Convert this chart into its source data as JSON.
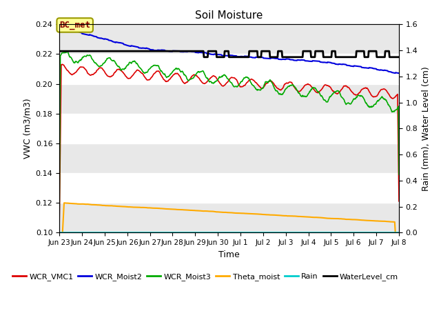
{
  "title": "Soil Moisture",
  "xlabel": "Time",
  "ylabel_left": "VWC (m3/m3)",
  "ylabel_right": "Rain (mm), Water Level (cm)",
  "ylim_left": [
    0.1,
    0.24
  ],
  "ylim_right": [
    0.0,
    1.6
  ],
  "plot_bg_color": "#e8e8e8",
  "fig_bg_color": "#ffffff",
  "band_color": "#f5f5f5",
  "annotation_text": "BC_met",
  "xtick_labels": [
    "Jun 23",
    "Jun 24",
    "Jun 25",
    "Jun 26",
    "Jun 27",
    "Jun 28",
    "Jun 29",
    "Jun 30",
    "Jul 1",
    "Jul 2",
    "Jul 3",
    "Jul 4",
    "Jul 5",
    "Jul 6",
    "Jul 7",
    "Jul 8"
  ],
  "colors": {
    "WCR_VMC1": "#dd0000",
    "WCR_Moist2": "#0000dd",
    "WCR_Moist3": "#00aa00",
    "Theta_moist": "#ffaa00",
    "Rain": "#00cccc",
    "WaterLevel_cm": "#000000"
  },
  "linewidths": {
    "WCR_VMC1": 1.2,
    "WCR_Moist2": 1.5,
    "WCR_Moist3": 1.2,
    "Theta_moist": 1.5,
    "Rain": 1.2,
    "WaterLevel_cm": 2.0
  },
  "yticks_left": [
    0.1,
    0.12,
    0.14,
    0.16,
    0.18,
    0.2,
    0.22,
    0.24
  ],
  "yticks_right": [
    0.0,
    0.2,
    0.4,
    0.6,
    0.8,
    1.0,
    1.2,
    1.4,
    1.6
  ]
}
